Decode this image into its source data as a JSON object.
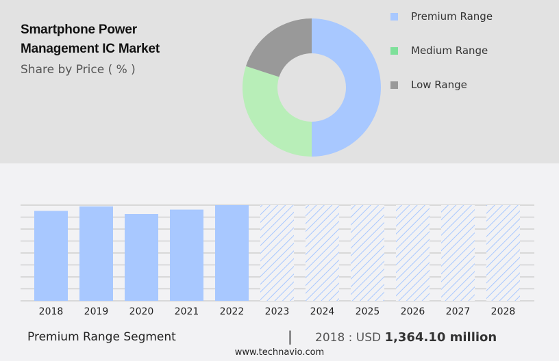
{
  "header": {
    "title_line1": "Smartphone Power",
    "title_line2": "Management IC Market",
    "subtitle": "Share by Price ( % )"
  },
  "legend": [
    {
      "label": "Premium Range",
      "color": "#a8c8ff"
    },
    {
      "label": "Medium Range",
      "color": "#7ee09a"
    },
    {
      "label": "Low Range",
      "color": "#999999"
    }
  ],
  "footer": {
    "segment": "Premium Range Segment",
    "separator": "|",
    "value_prefix": "2018 : USD ",
    "value_bold": "1,364.10 million",
    "website": "www.technavio.com"
  },
  "chart_data": [
    {
      "type": "pie",
      "title": "Share by Price ( % )",
      "donut": true,
      "categories": [
        "Premium Range",
        "Medium Range",
        "Low Range"
      ],
      "values": [
        50,
        30,
        20
      ],
      "colors": [
        "#a8c8ff",
        "#b8eeb8",
        "#999999"
      ],
      "legend_position": "right"
    },
    {
      "type": "bar",
      "title": "Premium Range Segment",
      "categories": [
        "2018",
        "2019",
        "2020",
        "2021",
        "2022",
        "2023",
        "2024",
        "2025",
        "2026",
        "2027",
        "2028"
      ],
      "values": [
        1364.1,
        1432,
        1317,
        1384,
        1452,
        null,
        null,
        null,
        null,
        null,
        null
      ],
      "forecast_years": [
        "2023",
        "2024",
        "2025",
        "2026",
        "2027",
        "2028"
      ],
      "ylabel": "",
      "xlabel": "",
      "grid": true,
      "y_axis_labels_shown": false,
      "bar_color": "#a8c8ff",
      "forecast_style": "hatched"
    }
  ]
}
